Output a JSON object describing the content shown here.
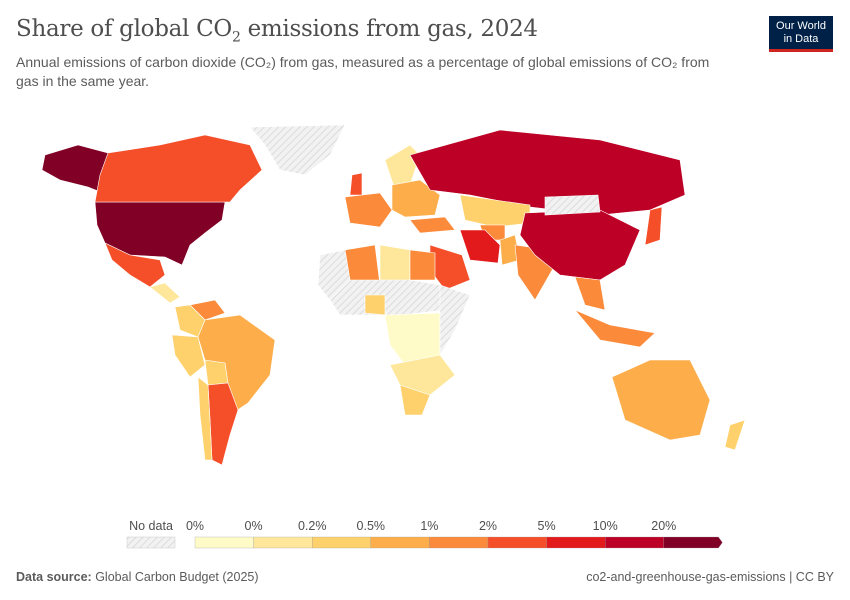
{
  "header": {
    "title_pre": "Share of global CO",
    "title_sub": "2",
    "title_post": " emissions from gas, 2024",
    "subtitle": "Annual emissions of carbon dioxide (CO₂) from gas, measured as a percentage of global emissions of CO₂ from gas in the same year.",
    "logo_line1": "Our World",
    "logo_line2": "in Data"
  },
  "chart_data": {
    "type": "choropleth",
    "title": "Share of global CO₂ emissions from gas, 2024",
    "unit": "%",
    "legend": {
      "no_data_label": "No data",
      "no_data_color": "#e6e6e6",
      "tick_labels": [
        "0%",
        "0%",
        "0.2%",
        "0.5%",
        "1%",
        "2%",
        "5%",
        "10%",
        "20%"
      ],
      "colors": [
        "#fffbc9",
        "#fee79a",
        "#fed16c",
        "#fdae4b",
        "#fc8a3b",
        "#f54f2a",
        "#e31a1c",
        "#bd0026",
        "#800026"
      ]
    },
    "regions": [
      {
        "name": "United States",
        "bin": 8
      },
      {
        "name": "Alaska",
        "bin": 8
      },
      {
        "name": "Canada",
        "bin": 5
      },
      {
        "name": "Mexico",
        "bin": 5
      },
      {
        "name": "Greenland",
        "bin": -1
      },
      {
        "name": "Central America",
        "bin": 1
      },
      {
        "name": "Venezuela",
        "bin": 4
      },
      {
        "name": "Colombia",
        "bin": 2
      },
      {
        "name": "Peru",
        "bin": 2
      },
      {
        "name": "Bolivia",
        "bin": 2
      },
      {
        "name": "Brazil",
        "bin": 3
      },
      {
        "name": "Argentina",
        "bin": 5
      },
      {
        "name": "Chile",
        "bin": 2
      },
      {
        "name": "United Kingdom",
        "bin": 5
      },
      {
        "name": "Western Europe",
        "bin": 4
      },
      {
        "name": "Scandinavia",
        "bin": 1
      },
      {
        "name": "Eastern Europe",
        "bin": 3
      },
      {
        "name": "Turkey",
        "bin": 4
      },
      {
        "name": "Russia",
        "bin": 7
      },
      {
        "name": "Kazakhstan",
        "bin": 2
      },
      {
        "name": "Uzbekistan",
        "bin": 4
      },
      {
        "name": "Iran",
        "bin": 6
      },
      {
        "name": "Saudi Arabia",
        "bin": 5
      },
      {
        "name": "Pakistan",
        "bin": 3
      },
      {
        "name": "India",
        "bin": 4
      },
      {
        "name": "China",
        "bin": 7
      },
      {
        "name": "Mongolia",
        "bin": -1
      },
      {
        "name": "Japan",
        "bin": 5
      },
      {
        "name": "South East Asia",
        "bin": 4
      },
      {
        "name": "Indonesia",
        "bin": 4
      },
      {
        "name": "Australia",
        "bin": 3
      },
      {
        "name": "New Zealand",
        "bin": 2
      },
      {
        "name": "Algeria",
        "bin": 4
      },
      {
        "name": "Libya",
        "bin": 1
      },
      {
        "name": "Egypt",
        "bin": 4
      },
      {
        "name": "West Sahara region",
        "bin": -1
      },
      {
        "name": "Sahel",
        "bin": -1
      },
      {
        "name": "Nigeria",
        "bin": 2
      },
      {
        "name": "Central Africa",
        "bin": 0
      },
      {
        "name": "East Africa",
        "bin": -1
      },
      {
        "name": "Southern Africa",
        "bin": 1
      },
      {
        "name": "South Africa",
        "bin": 2
      }
    ]
  },
  "footer": {
    "source_label": "Data source:",
    "source": " Global Carbon Budget (2025)",
    "right": "co2-and-greenhouse-gas-emissions | CC BY"
  }
}
